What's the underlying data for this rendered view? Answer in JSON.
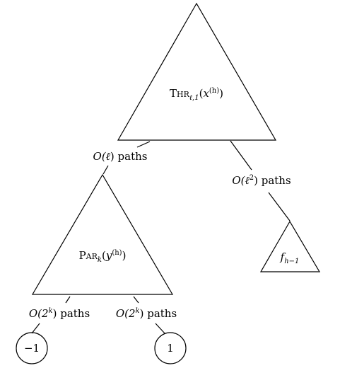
{
  "top_triangle": {
    "label_pre": "T",
    "label_sc": "HR",
    "label_sub": "ℓ,1",
    "label_open": "(",
    "label_var": "x",
    "label_sup": "(h)",
    "label_close": ")"
  },
  "left_triangle": {
    "label_pre": "P",
    "label_sc": "AR",
    "label_sub": "k",
    "label_open": "(",
    "label_var": "y",
    "label_sup": "(h)",
    "label_close": ")"
  },
  "small_triangle": {
    "label_main": "f",
    "label_sub": "h−1"
  },
  "edges": {
    "left": {
      "pre": "O(",
      "var": "ℓ",
      "post": ") paths"
    },
    "right": {
      "pre": "O(",
      "var": "ℓ",
      "sup": "2",
      "post": ") paths"
    },
    "bottom_left": {
      "pre": "O(2",
      "sup": "k",
      "post": ") paths"
    },
    "bottom_right": {
      "pre": "O(2",
      "sup": "k",
      "post": ") paths"
    }
  },
  "leaves": {
    "left": "−1",
    "right": "1"
  }
}
